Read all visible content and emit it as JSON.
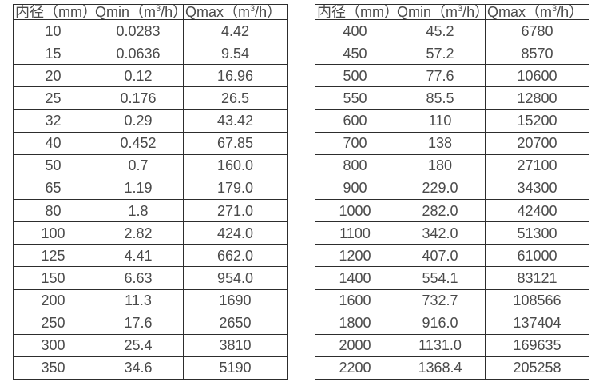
{
  "colors": {
    "background": "#ffffff",
    "border": "#2d2d2d",
    "text": "#4a4a4a"
  },
  "tables": [
    {
      "id": "small-diameter-table",
      "header": {
        "diameter": "内径（mm）",
        "qmin_prefix": "Qmin（m",
        "qmin_sup": "3",
        "qmin_suffix": "/h）",
        "qmax_prefix": "Qmax（m",
        "qmax_sup": "3",
        "qmax_suffix": "/h）"
      },
      "rows": [
        {
          "diameter": "10",
          "qmin": "0.0283",
          "qmax": "4.42"
        },
        {
          "diameter": "15",
          "qmin": "0.0636",
          "qmax": "9.54"
        },
        {
          "diameter": "20",
          "qmin": "0.12",
          "qmax": "16.96"
        },
        {
          "diameter": "25",
          "qmin": "0.176",
          "qmax": "26.5"
        },
        {
          "diameter": "32",
          "qmin": "0.29",
          "qmax": "43.42"
        },
        {
          "diameter": "40",
          "qmin": "0.452",
          "qmax": "67.85"
        },
        {
          "diameter": "50",
          "qmin": "0.7",
          "qmax": "160.0"
        },
        {
          "diameter": "65",
          "qmin": "1.19",
          "qmax": "179.0"
        },
        {
          "diameter": "80",
          "qmin": "1.8",
          "qmax": "271.0"
        },
        {
          "diameter": "100",
          "qmin": "2.82",
          "qmax": "424.0"
        },
        {
          "diameter": "125",
          "qmin": "4.41",
          "qmax": "662.0"
        },
        {
          "diameter": "150",
          "qmin": "6.63",
          "qmax": "954.0"
        },
        {
          "diameter": "200",
          "qmin": "11.3",
          "qmax": "1690"
        },
        {
          "diameter": "250",
          "qmin": "17.6",
          "qmax": "2650"
        },
        {
          "diameter": "300",
          "qmin": "25.4",
          "qmax": "3810"
        },
        {
          "diameter": "350",
          "qmin": "34.6",
          "qmax": "5190"
        }
      ]
    },
    {
      "id": "large-diameter-table",
      "header": {
        "diameter": "内径（mm）",
        "qmin_prefix": "Qmin（m",
        "qmin_sup": "3",
        "qmin_suffix": "/h）",
        "qmax_prefix": "Qmax（m",
        "qmax_sup": "3",
        "qmax_suffix": "/h）"
      },
      "rows": [
        {
          "diameter": "400",
          "qmin": "45.2",
          "qmax": "6780"
        },
        {
          "diameter": "450",
          "qmin": "57.2",
          "qmax": "8570"
        },
        {
          "diameter": "500",
          "qmin": "77.6",
          "qmax": "10600"
        },
        {
          "diameter": "550",
          "qmin": "85.5",
          "qmax": "12800"
        },
        {
          "diameter": "600",
          "qmin": "110",
          "qmax": "15200"
        },
        {
          "diameter": "700",
          "qmin": "138",
          "qmax": "20700"
        },
        {
          "diameter": "800",
          "qmin": "180",
          "qmax": "27100"
        },
        {
          "diameter": "900",
          "qmin": "229.0",
          "qmax": "34300"
        },
        {
          "diameter": "1000",
          "qmin": "282.0",
          "qmax": "42400"
        },
        {
          "diameter": "1100",
          "qmin": "342.0",
          "qmax": "51300"
        },
        {
          "diameter": "1200",
          "qmin": "407.0",
          "qmax": "61000"
        },
        {
          "diameter": "1400",
          "qmin": "554.1",
          "qmax": "83121"
        },
        {
          "diameter": "1600",
          "qmin": "732.7",
          "qmax": "108566"
        },
        {
          "diameter": "1800",
          "qmin": "916.0",
          "qmax": "137404"
        },
        {
          "diameter": "2000",
          "qmin": "1131.0",
          "qmax": "169635"
        },
        {
          "diameter": "2200",
          "qmin": "1368.4",
          "qmax": "205258"
        }
      ]
    }
  ]
}
